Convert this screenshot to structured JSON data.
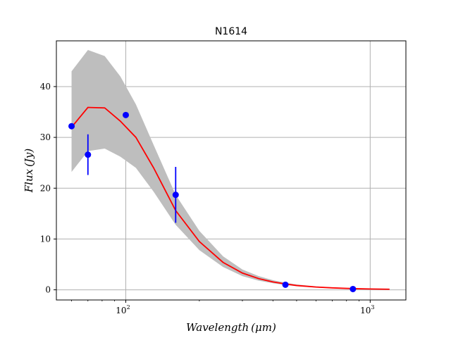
{
  "chart_data": {
    "type": "line",
    "title": "N1614",
    "xlabel": "Wavelength (μm)",
    "ylabel": "Flux (Jy)",
    "x_scale": "log",
    "xlim": [
      52,
      1400
    ],
    "ylim": [
      -2,
      49
    ],
    "grid": true,
    "x_ticks": [
      100,
      1000
    ],
    "x_tick_labels": [
      {
        "base": "10",
        "exp": "2"
      },
      {
        "base": "10",
        "exp": "3"
      }
    ],
    "y_ticks": [
      0,
      10,
      20,
      30,
      40
    ],
    "y_tick_labels": [
      "0",
      "10",
      "20",
      "30",
      "40"
    ],
    "model": {
      "color": "#ff0000",
      "x": [
        60,
        70,
        82,
        95,
        110,
        130,
        160,
        200,
        250,
        300,
        350,
        400,
        450,
        500,
        600,
        700,
        800,
        900,
        1000,
        1200
      ],
      "y": [
        32.0,
        35.9,
        35.8,
        33.2,
        30.0,
        24.0,
        15.6,
        9.5,
        5.4,
        3.3,
        2.2,
        1.55,
        1.15,
        0.85,
        0.55,
        0.38,
        0.28,
        0.21,
        0.17,
        0.11
      ]
    },
    "uncertainty_band": {
      "color": "#bebebe",
      "x": [
        60,
        70,
        82,
        95,
        110,
        130,
        160,
        200,
        250,
        300,
        350,
        400,
        450,
        500,
        600,
        700,
        800,
        900,
        1000,
        1200
      ],
      "upper": [
        43.0,
        47.2,
        46.0,
        42.0,
        36.5,
        28.5,
        18.7,
        11.6,
        6.6,
        4.0,
        2.7,
        1.9,
        1.4,
        1.05,
        0.68,
        0.47,
        0.35,
        0.26,
        0.21,
        0.14
      ],
      "lower": [
        23.2,
        27.3,
        27.8,
        26.2,
        24.0,
        19.3,
        12.8,
        7.8,
        4.5,
        2.7,
        1.8,
        1.3,
        0.95,
        0.7,
        0.45,
        0.31,
        0.23,
        0.17,
        0.14,
        0.09
      ]
    },
    "observations": {
      "color": "#0000ff",
      "points": [
        {
          "x": 60,
          "y": 32.2
        },
        {
          "x": 70,
          "y": 26.6,
          "yerr": 4.0
        },
        {
          "x": 100,
          "y": 34.4
        },
        {
          "x": 160,
          "y": 18.7,
          "yerr": 5.5
        },
        {
          "x": 450,
          "y": 1.0
        },
        {
          "x": 850,
          "y": 0.15
        }
      ]
    }
  }
}
